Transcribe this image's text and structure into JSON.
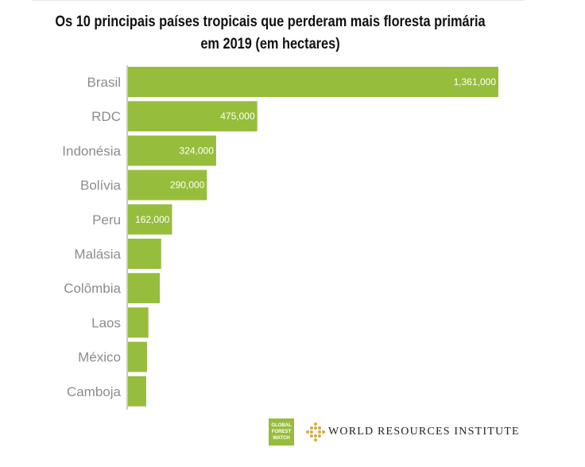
{
  "chart_data": {
    "type": "bar",
    "orientation": "horizontal",
    "title": "Os 10 principais países tropicais que perderam mais floresta primária em 2019 (em hectares)",
    "categories": [
      "Brasil",
      "RDC",
      "Indonésia",
      "Bolívia",
      "Peru",
      "Malásia",
      "Colômbia",
      "Laos",
      "México",
      "Camboja"
    ],
    "values": [
      1361000,
      475000,
      324000,
      290000,
      162000,
      122000,
      117000,
      75000,
      70000,
      67000
    ],
    "labels": [
      "1,361,000",
      "475,000",
      "324,000",
      "290,000",
      "162,000",
      "",
      "",
      "",
      "",
      ""
    ],
    "xlim": [
      0,
      1361000
    ],
    "bar_color": "#97bd3d",
    "grid": false
  },
  "logos": {
    "gfw_lines": [
      "GLOBAL",
      "FOREST",
      "WATCH"
    ],
    "wri_text": "WORLD RESOURCES INSTITUTE"
  }
}
